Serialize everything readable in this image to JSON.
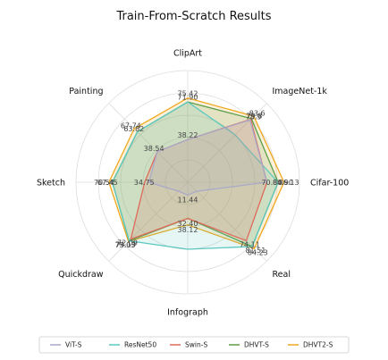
{
  "chart_data": {
    "type": "radar",
    "title": "Train-From-Scratch Results",
    "axes": [
      "ClipArt",
      "ImageNet-1k",
      "Cifar-100",
      "Real",
      "Infograph",
      "Quickdraw",
      "Sketch",
      "Painting"
    ],
    "rlim": [
      0,
      100
    ],
    "grid": true,
    "legend_position": "bottom",
    "series": [
      {
        "name": "ViT-S",
        "color": "#a9a9c9",
        "values": [
          38.22,
          78.9,
          70.84,
          11.44,
          11.44,
          11.44,
          34.75,
          38.54
        ],
        "labels": [
          "38.22",
          "78.9",
          "70.84",
          "",
          "11.44",
          "",
          "34.75",
          "38.54"
        ]
      },
      {
        "name": "ResNet50",
        "color": "#5bc8c0",
        "values": [
          71.9,
          60.0,
          80.9,
          81.51,
          60.0,
          74.19,
          67.45,
          63.82
        ],
        "labels": [
          "71.90",
          "",
          "80.90",
          "81.51",
          "",
          "74.19",
          "67.45",
          "63.82"
        ]
      },
      {
        "name": "Swin-S",
        "color": "#e06a5a",
        "values": [
          38.22,
          79.8,
          70.84,
          74.11,
          32.4,
          72.09,
          38.54,
          38.54
        ],
        "labels": [
          "",
          "79.8",
          "",
          "74.11",
          "32.40",
          "72.09",
          "",
          ""
        ]
      },
      {
        "name": "DHVT-S",
        "color": "#5c9e4b",
        "values": [
          71.9,
          80.5,
          80.9,
          81.51,
          32.4,
          74.19,
          67.45,
          63.82
        ],
        "labels": [
          "",
          "",
          "",
          "",
          "",
          "",
          "",
          ""
        ]
      },
      {
        "name": "DHVT2-S",
        "color": "#f0a81e",
        "values": [
          75.42,
          83.6,
          86.13,
          84.23,
          38.12,
          75.03,
          70.54,
          67.74
        ],
        "labels": [
          "75.42",
          "83.6",
          "86.13",
          "84.23",
          "38.12",
          "75.03",
          "70.54",
          "67.74"
        ]
      }
    ]
  }
}
